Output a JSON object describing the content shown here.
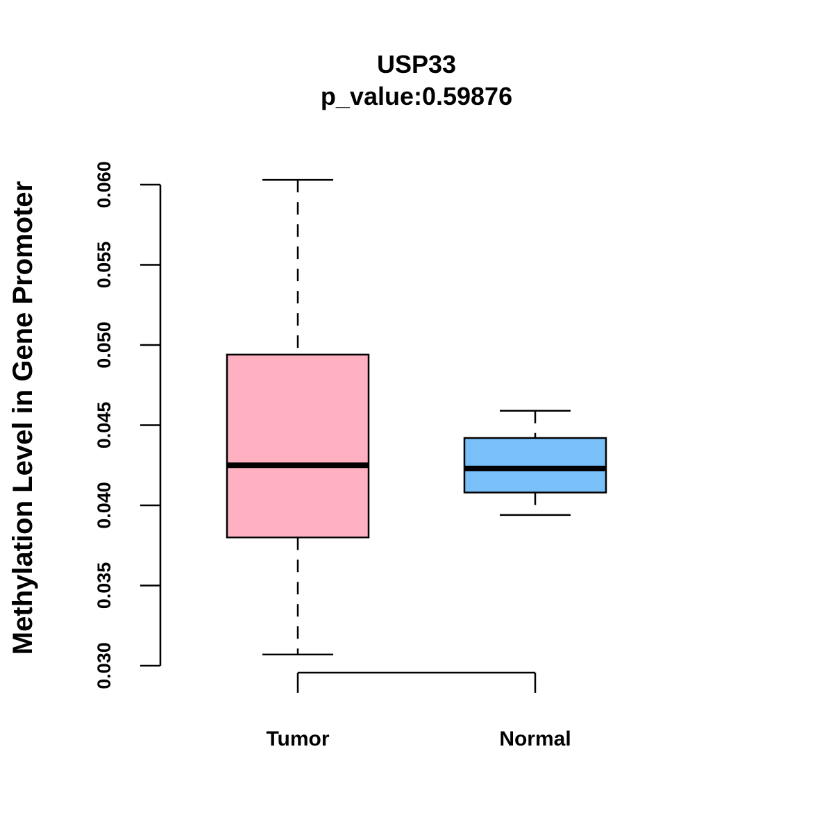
{
  "chart_data": {
    "type": "boxplot",
    "title": "USP33",
    "subtitle": "p_value:0.59876",
    "ylabel": "Methylation Level in Gene Promoter",
    "xlabel": "",
    "ylim": [
      0.03,
      0.06
    ],
    "yticks": [
      0.03,
      0.035,
      0.04,
      0.045,
      0.05,
      0.055,
      0.06
    ],
    "ytick_labels": [
      "0.030",
      "0.035",
      "0.040",
      "0.045",
      "0.050",
      "0.055",
      "0.060"
    ],
    "grid": false,
    "categories": [
      "Tumor",
      "Normal"
    ],
    "boxes": [
      {
        "category": "Tumor",
        "min": 0.0307,
        "q1": 0.038,
        "median": 0.0425,
        "q3": 0.0494,
        "max": 0.0603,
        "color": "#FFB0C1"
      },
      {
        "category": "Normal",
        "min": 0.0394,
        "q1": 0.0408,
        "median": 0.0423,
        "q3": 0.0442,
        "max": 0.0459,
        "color": "#79C0F8"
      }
    ]
  }
}
